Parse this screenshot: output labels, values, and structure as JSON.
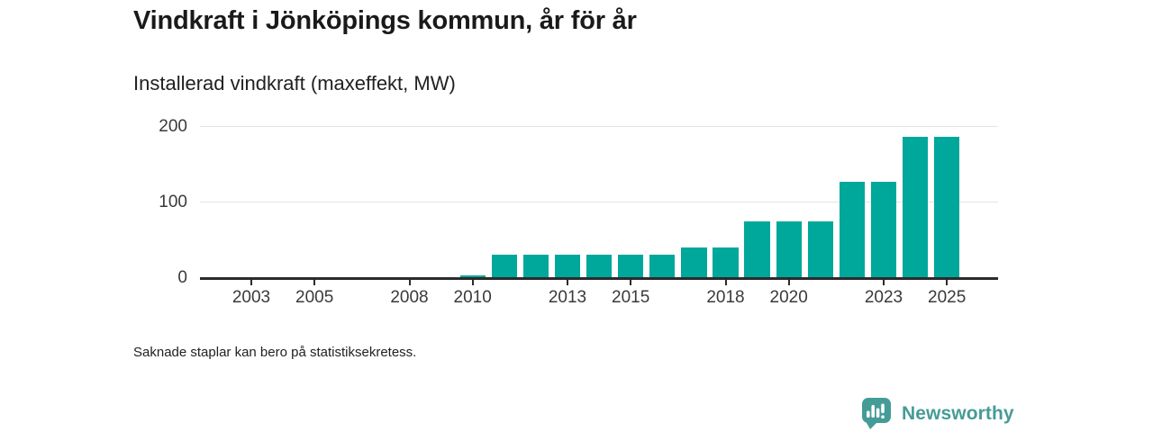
{
  "header": {
    "title": "Vindkraft i Jönköpings kommun, år för år",
    "subtitle": "Installerad vindkraft (maxeffekt, MW)"
  },
  "chart_data": {
    "type": "bar",
    "title": "Vindkraft i Jönköpings kommun, år för år",
    "ylabel": "Installerad vindkraft (maxeffekt, MW)",
    "x": [
      2002,
      2003,
      2004,
      2005,
      2006,
      2007,
      2008,
      2009,
      2010,
      2011,
      2012,
      2013,
      2014,
      2015,
      2016,
      2017,
      2018,
      2019,
      2020,
      2021,
      2022,
      2023,
      2024,
      2025
    ],
    "values": [
      null,
      null,
      null,
      null,
      null,
      null,
      null,
      null,
      4,
      31,
      31,
      31,
      31,
      31,
      31,
      40,
      40,
      75,
      75,
      75,
      127,
      127,
      186,
      186
    ],
    "xticks": [
      2003,
      2005,
      2008,
      2010,
      2013,
      2015,
      2018,
      2020,
      2023,
      2025
    ],
    "yticks": [
      0,
      100,
      200
    ],
    "ylim": [
      0,
      200
    ],
    "grid": "horizontal-only",
    "legend": "none",
    "colors": {
      "bar": "#00a79b",
      "axis": "#2b2b2b",
      "grid": "#e4e4e4",
      "tick_label": "#3a3a3a"
    },
    "missing_note": "Saknade staplar kan bero på statistiksekretess."
  },
  "footer": {
    "note": "Saknade staplar kan bero på statistiksekretess.",
    "brand": "Newsworthy",
    "brand_color": "#459c96",
    "brand_icon": "speech-bubble-bar-chart-icon"
  }
}
